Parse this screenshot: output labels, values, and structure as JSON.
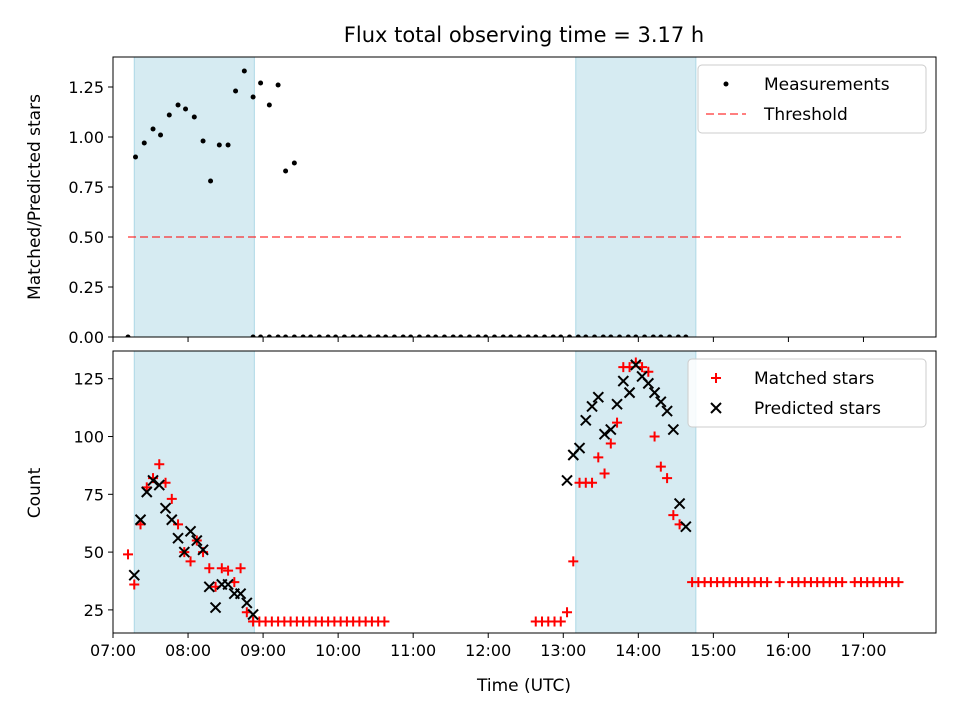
{
  "title": "Flux total observing time = 3.17 h",
  "colors": {
    "band": "#add8e6",
    "threshold": "#ff0000",
    "measurements": "#000000",
    "matched": "#ff0000",
    "predicted": "#000000"
  },
  "chart_data": [
    {
      "type": "scatter",
      "ylabel": "Matched/Predicted stars",
      "xlim": [
        "07:00",
        "17:58"
      ],
      "ylim": [
        0,
        1.4
      ],
      "yticks": [
        "0.00",
        "0.25",
        "0.50",
        "0.75",
        "1.00",
        "1.25"
      ],
      "shaded_intervals": [
        [
          "07:17",
          "08:53"
        ],
        [
          "13:10",
          "14:46"
        ]
      ],
      "legend_position": "top-right",
      "legend": [
        "Measurements",
        "Threshold"
      ],
      "threshold": {
        "name": "Threshold",
        "y": 0.5,
        "x_range": [
          "07:12",
          "17:30"
        ]
      },
      "series": [
        {
          "name": "Measurements",
          "points": [
            [
              "07:12",
              0.0
            ],
            [
              "07:18",
              0.9
            ],
            [
              "07:25",
              0.97
            ],
            [
              "07:32",
              1.04
            ],
            [
              "07:38",
              1.01
            ],
            [
              "07:45",
              1.11
            ],
            [
              "07:52",
              1.16
            ],
            [
              "07:58",
              1.14
            ],
            [
              "08:05",
              1.1
            ],
            [
              "08:12",
              0.98
            ],
            [
              "08:18",
              0.78
            ],
            [
              "08:25",
              0.96
            ],
            [
              "08:32",
              0.96
            ],
            [
              "08:38",
              1.23
            ],
            [
              "08:45",
              1.33
            ],
            [
              "08:52",
              1.2
            ],
            [
              "08:58",
              1.27
            ],
            [
              "09:05",
              1.16
            ],
            [
              "09:12",
              1.26
            ],
            [
              "09:18",
              0.83
            ],
            [
              "09:25",
              0.87
            ],
            [
              "08:52",
              0.0
            ],
            [
              "08:58",
              0.0
            ],
            [
              "09:05",
              0.0
            ],
            [
              "09:12",
              0.0
            ],
            [
              "09:18",
              0.0
            ],
            [
              "09:25",
              0.0
            ],
            [
              "09:32",
              0.0
            ],
            [
              "09:38",
              0.0
            ],
            [
              "09:45",
              0.0
            ],
            [
              "09:52",
              0.0
            ],
            [
              "09:58",
              0.0
            ],
            [
              "10:05",
              0.0
            ],
            [
              "10:12",
              0.0
            ],
            [
              "10:18",
              0.0
            ],
            [
              "10:25",
              0.0
            ],
            [
              "10:32",
              0.0
            ],
            [
              "10:38",
              0.0
            ],
            [
              "10:45",
              0.0
            ],
            [
              "10:52",
              0.0
            ],
            [
              "10:58",
              0.0
            ],
            [
              "11:05",
              0.0
            ],
            [
              "11:12",
              0.0
            ],
            [
              "11:18",
              0.0
            ],
            [
              "11:25",
              0.0
            ],
            [
              "11:32",
              0.0
            ],
            [
              "11:38",
              0.0
            ],
            [
              "11:45",
              0.0
            ],
            [
              "11:52",
              0.0
            ],
            [
              "11:58",
              0.0
            ],
            [
              "12:05",
              0.0
            ],
            [
              "12:12",
              0.0
            ],
            [
              "12:18",
              0.0
            ],
            [
              "12:25",
              0.0
            ],
            [
              "12:32",
              0.0
            ],
            [
              "12:38",
              0.0
            ],
            [
              "12:45",
              0.0
            ],
            [
              "12:52",
              0.0
            ],
            [
              "12:58",
              0.0
            ],
            [
              "13:05",
              0.0
            ],
            [
              "13:12",
              0.0
            ],
            [
              "13:18",
              0.0
            ],
            [
              "13:25",
              0.0
            ],
            [
              "13:32",
              0.0
            ],
            [
              "13:38",
              0.0
            ],
            [
              "13:45",
              0.0
            ],
            [
              "13:52",
              0.0
            ],
            [
              "13:58",
              0.0
            ],
            [
              "14:05",
              0.0
            ],
            [
              "14:12",
              0.0
            ],
            [
              "14:18",
              0.0
            ],
            [
              "14:25",
              0.0
            ],
            [
              "14:32",
              0.0
            ],
            [
              "14:38",
              0.0
            ]
          ]
        }
      ]
    },
    {
      "type": "scatter",
      "xlabel": "Time (UTC)",
      "ylabel": "Count",
      "xlim": [
        "07:00",
        "17:58"
      ],
      "ylim": [
        15,
        137
      ],
      "xticks": [
        "07:00",
        "08:00",
        "09:00",
        "10:00",
        "11:00",
        "12:00",
        "13:00",
        "14:00",
        "15:00",
        "16:00",
        "17:00"
      ],
      "yticks": [
        "25",
        "50",
        "75",
        "100",
        "125"
      ],
      "shaded_intervals": [
        [
          "07:17",
          "08:53"
        ],
        [
          "13:10",
          "14:46"
        ]
      ],
      "legend_position": "top-right",
      "legend": [
        "Matched stars",
        "Predicted stars"
      ],
      "series": [
        {
          "name": "Matched stars",
          "marker": "+",
          "points": [
            [
              "07:12",
              49
            ],
            [
              "07:17",
              36
            ],
            [
              "07:22",
              62
            ],
            [
              "07:27",
              78
            ],
            [
              "07:32",
              82
            ],
            [
              "07:37",
              88
            ],
            [
              "07:42",
              80
            ],
            [
              "07:47",
              73
            ],
            [
              "07:52",
              62
            ],
            [
              "07:57",
              50
            ],
            [
              "08:02",
              46
            ],
            [
              "08:07",
              55
            ],
            [
              "08:12",
              50
            ],
            [
              "08:17",
              43
            ],
            [
              "08:22",
              35
            ],
            [
              "08:27",
              43
            ],
            [
              "08:32",
              42
            ],
            [
              "08:37",
              37
            ],
            [
              "08:42",
              43
            ],
            [
              "08:47",
              24
            ],
            [
              "08:52",
              20
            ],
            [
              "08:57",
              20
            ],
            [
              "09:02",
              20
            ],
            [
              "09:07",
              20
            ],
            [
              "09:12",
              20
            ],
            [
              "09:17",
              20
            ],
            [
              "09:22",
              20
            ],
            [
              "09:27",
              20
            ],
            [
              "09:32",
              20
            ],
            [
              "09:37",
              20
            ],
            [
              "09:42",
              20
            ],
            [
              "09:47",
              20
            ],
            [
              "09:52",
              20
            ],
            [
              "09:57",
              20
            ],
            [
              "10:02",
              20
            ],
            [
              "10:07",
              20
            ],
            [
              "10:12",
              20
            ],
            [
              "10:17",
              20
            ],
            [
              "10:22",
              20
            ],
            [
              "10:27",
              20
            ],
            [
              "10:32",
              20
            ],
            [
              "10:37",
              20
            ],
            [
              "12:38",
              20
            ],
            [
              "12:43",
              20
            ],
            [
              "12:48",
              20
            ],
            [
              "12:53",
              20
            ],
            [
              "12:58",
              20
            ],
            [
              "13:03",
              24
            ],
            [
              "13:08",
              46
            ],
            [
              "13:13",
              80
            ],
            [
              "13:18",
              80
            ],
            [
              "13:23",
              80
            ],
            [
              "13:28",
              91
            ],
            [
              "13:33",
              84
            ],
            [
              "13:38",
              97
            ],
            [
              "13:43",
              106
            ],
            [
              "13:48",
              130
            ],
            [
              "13:53",
              130
            ],
            [
              "13:58",
              132
            ],
            [
              "14:03",
              130
            ],
            [
              "14:08",
              128
            ],
            [
              "14:13",
              100
            ],
            [
              "14:18",
              87
            ],
            [
              "14:23",
              82
            ],
            [
              "14:28",
              66
            ],
            [
              "14:33",
              62
            ],
            [
              "14:43",
              37
            ],
            [
              "14:48",
              37
            ],
            [
              "14:53",
              37
            ],
            [
              "14:58",
              37
            ],
            [
              "15:03",
              37
            ],
            [
              "15:08",
              37
            ],
            [
              "15:13",
              37
            ],
            [
              "15:18",
              37
            ],
            [
              "15:23",
              37
            ],
            [
              "15:28",
              37
            ],
            [
              "15:33",
              37
            ],
            [
              "15:38",
              37
            ],
            [
              "15:43",
              37
            ],
            [
              "15:53",
              37
            ],
            [
              "16:03",
              37
            ],
            [
              "16:08",
              37
            ],
            [
              "16:13",
              37
            ],
            [
              "16:18",
              37
            ],
            [
              "16:23",
              37
            ],
            [
              "16:28",
              37
            ],
            [
              "16:33",
              37
            ],
            [
              "16:38",
              37
            ],
            [
              "16:43",
              37
            ],
            [
              "16:53",
              37
            ],
            [
              "16:58",
              37
            ],
            [
              "17:03",
              37
            ],
            [
              "17:08",
              37
            ],
            [
              "17:13",
              37
            ],
            [
              "17:18",
              37
            ],
            [
              "17:23",
              37
            ],
            [
              "17:28",
              37
            ]
          ]
        },
        {
          "name": "Predicted stars",
          "marker": "x",
          "points": [
            [
              "07:17",
              40
            ],
            [
              "07:22",
              64
            ],
            [
              "07:27",
              76
            ],
            [
              "07:32",
              81
            ],
            [
              "07:37",
              79
            ],
            [
              "07:42",
              69
            ],
            [
              "07:47",
              64
            ],
            [
              "07:52",
              56
            ],
            [
              "07:57",
              50
            ],
            [
              "08:02",
              59
            ],
            [
              "08:07",
              55
            ],
            [
              "08:12",
              51
            ],
            [
              "08:17",
              35
            ],
            [
              "08:22",
              26
            ],
            [
              "08:27",
              36
            ],
            [
              "08:32",
              36
            ],
            [
              "08:37",
              32
            ],
            [
              "08:42",
              32
            ],
            [
              "08:47",
              28
            ],
            [
              "08:52",
              23
            ],
            [
              "13:03",
              81
            ],
            [
              "13:08",
              92
            ],
            [
              "13:13",
              95
            ],
            [
              "13:18",
              107
            ],
            [
              "13:23",
              113
            ],
            [
              "13:28",
              117
            ],
            [
              "13:33",
              101
            ],
            [
              "13:38",
              103
            ],
            [
              "13:43",
              114
            ],
            [
              "13:48",
              124
            ],
            [
              "13:53",
              119
            ],
            [
              "13:58",
              131
            ],
            [
              "14:03",
              126
            ],
            [
              "14:08",
              123
            ],
            [
              "14:13",
              119
            ],
            [
              "14:18",
              115
            ],
            [
              "14:23",
              111
            ],
            [
              "14:28",
              103
            ],
            [
              "14:33",
              71
            ],
            [
              "14:38",
              61
            ]
          ]
        }
      ]
    }
  ]
}
